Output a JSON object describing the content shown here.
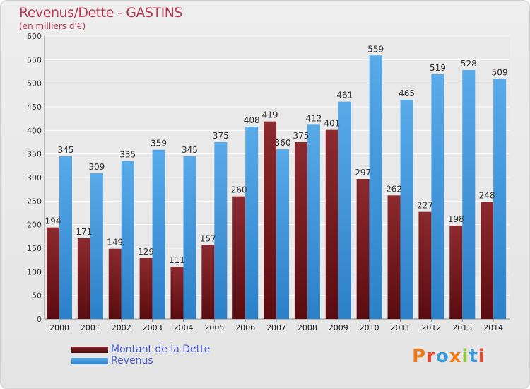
{
  "title": "Revenus/Dette - GASTINS",
  "subtitle": "(en milliers d'€)",
  "logo": {
    "text": "Proxiti",
    "colors": [
      "#f07c1a",
      "#e8442c",
      "#3a9ad9",
      "#f07c1a",
      "#8cc63f",
      "#3a9ad9",
      "#e8442c"
    ]
  },
  "colors": {
    "dette": "#7a1f22",
    "revenus": "#4a9de0"
  },
  "chart_data": {
    "type": "bar",
    "categories": [
      "2000",
      "2001",
      "2002",
      "2003",
      "2004",
      "2005",
      "2006",
      "2007",
      "2008",
      "2009",
      "2010",
      "2011",
      "2012",
      "2013",
      "2014"
    ],
    "series": [
      {
        "name": "Montant de la Dette",
        "values": [
          194,
          171,
          149,
          129,
          111,
          157,
          260,
          419,
          375,
          401,
          297,
          262,
          227,
          198,
          248
        ]
      },
      {
        "name": "Revenus",
        "values": [
          345,
          309,
          335,
          359,
          345,
          375,
          408,
          360,
          412,
          461,
          559,
          465,
          519,
          528,
          509
        ]
      }
    ],
    "yticks": [
      0,
      50,
      100,
      150,
      200,
      250,
      300,
      350,
      400,
      450,
      500,
      550,
      600
    ],
    "ylim": [
      0,
      600
    ],
    "grid": true,
    "legend": "bottom-left"
  }
}
